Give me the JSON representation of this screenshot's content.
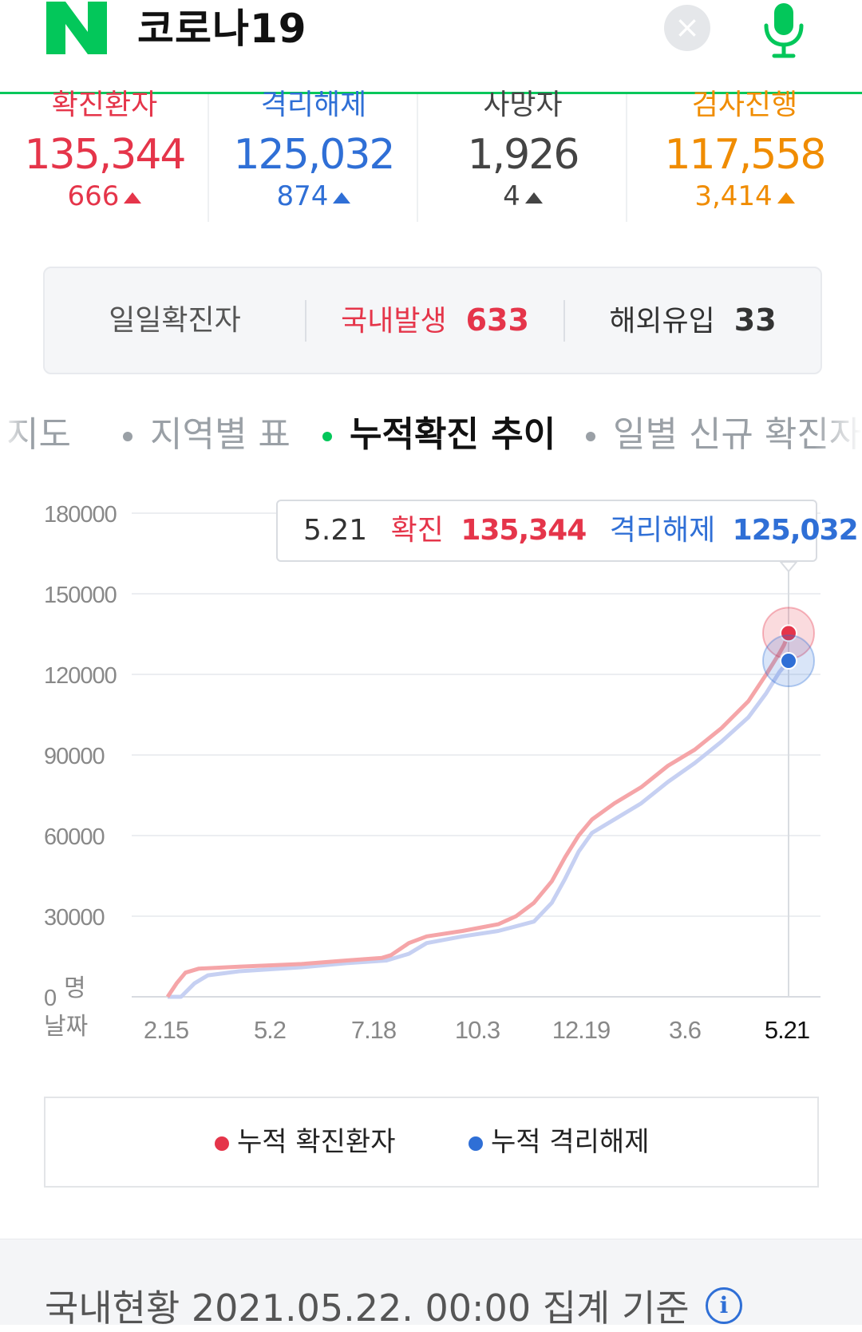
{
  "search": {
    "query": "코로나19",
    "clear_label": "×"
  },
  "colors": {
    "confirmed": "#e5354a",
    "released": "#2f6fd6",
    "death": "#444444",
    "testing": "#f08c00",
    "brand": "#03c75a"
  },
  "stats": [
    {
      "label": "확진환자",
      "value": "135,344",
      "delta": "666",
      "color": "#e5354a"
    },
    {
      "label": "격리해제",
      "value": "125,032",
      "delta": "874",
      "color": "#2f6fd6"
    },
    {
      "label": "사망자",
      "value": "1,926",
      "delta": "4",
      "color": "#444444"
    },
    {
      "label": "검사진행",
      "value": "117,558",
      "delta": "3,414",
      "color": "#f08c00"
    }
  ],
  "daily": {
    "title": "일일확진자",
    "domestic_label": "국내발생",
    "domestic_value": "633",
    "overseas_label": "해외유입",
    "overseas_value": "33"
  },
  "tabs": [
    {
      "label": "지도",
      "active": false
    },
    {
      "label": "지역별 표",
      "active": false
    },
    {
      "label": "누적확진 추이",
      "active": true
    },
    {
      "label": "일별 신규 확진자",
      "active": false
    }
  ],
  "chart_data": {
    "type": "line",
    "y_axis_title": "명",
    "x_axis_title": "날짜",
    "ylim": [
      0,
      180000
    ],
    "yticks": [
      0,
      30000,
      60000,
      90000,
      120000,
      150000,
      180000
    ],
    "ytick_labels": [
      "0",
      "30000",
      "60000",
      "90000",
      "120000",
      "150000",
      "180000"
    ],
    "xtick_labels": [
      "2.15",
      "5.2",
      "7.18",
      "10.3",
      "12.19",
      "3.6",
      "5.21"
    ],
    "grid": true,
    "series": [
      {
        "name": "누적 확진환자",
        "color": "#f5a5a8",
        "highlight_color": "#e5354a",
        "points": [
          [
            0,
            0
          ],
          [
            10,
            5000
          ],
          [
            20,
            9000
          ],
          [
            35,
            10500
          ],
          [
            80,
            11200
          ],
          [
            150,
            12200
          ],
          [
            200,
            13500
          ],
          [
            240,
            14500
          ],
          [
            250,
            15500
          ],
          [
            270,
            20000
          ],
          [
            290,
            22500
          ],
          [
            330,
            24500
          ],
          [
            370,
            27000
          ],
          [
            390,
            30000
          ],
          [
            410,
            35000
          ],
          [
            430,
            43000
          ],
          [
            445,
            52000
          ],
          [
            460,
            60000
          ],
          [
            475,
            66000
          ],
          [
            500,
            72000
          ],
          [
            530,
            78000
          ],
          [
            560,
            86000
          ],
          [
            590,
            92000
          ],
          [
            620,
            100000
          ],
          [
            650,
            110000
          ],
          [
            670,
            120000
          ],
          [
            685,
            128000
          ],
          [
            690,
            131000
          ],
          [
            695,
            135344
          ]
        ]
      },
      {
        "name": "누적 격리해제",
        "color": "#c6d0f2",
        "highlight_color": "#2f6fd6",
        "points": [
          [
            0,
            0
          ],
          [
            15,
            0
          ],
          [
            30,
            5000
          ],
          [
            45,
            8000
          ],
          [
            80,
            9500
          ],
          [
            150,
            11000
          ],
          [
            200,
            12500
          ],
          [
            245,
            13500
          ],
          [
            270,
            16000
          ],
          [
            290,
            20000
          ],
          [
            330,
            22500
          ],
          [
            370,
            24500
          ],
          [
            410,
            28000
          ],
          [
            430,
            35000
          ],
          [
            445,
            44000
          ],
          [
            460,
            54000
          ],
          [
            475,
            61000
          ],
          [
            500,
            66000
          ],
          [
            530,
            72000
          ],
          [
            560,
            80000
          ],
          [
            590,
            87000
          ],
          [
            620,
            95000
          ],
          [
            650,
            104000
          ],
          [
            670,
            113000
          ],
          [
            685,
            121000
          ],
          [
            695,
            125032
          ]
        ]
      }
    ],
    "tooltip": {
      "date": "5.21",
      "confirmed_label": "확진",
      "confirmed_value": "135,344",
      "released_label": "격리해제",
      "released_value": "125,032"
    }
  },
  "legend": [
    {
      "label": "누적 확진환자",
      "color": "#e5354a"
    },
    {
      "label": "누적 격리해제",
      "color": "#2f6fd6"
    }
  ],
  "footer": {
    "text": "국내현황 2021.05.22. 00:00 집계 기준",
    "info_icon": "i"
  }
}
